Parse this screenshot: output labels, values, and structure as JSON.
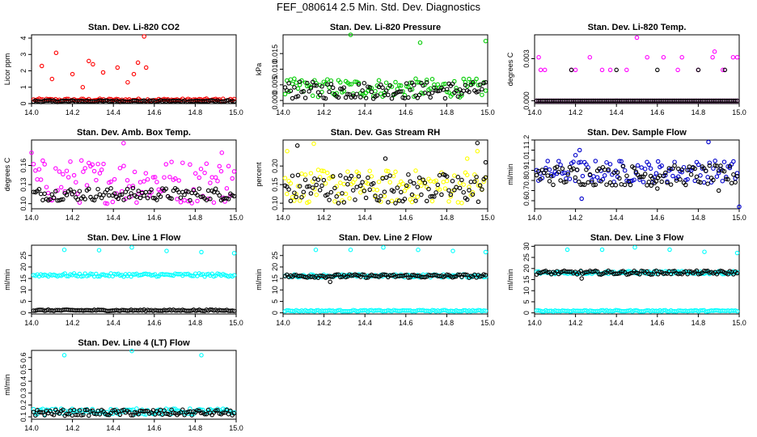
{
  "title": "FEF_080614  2.5 Min. Std. Dev. Diagnostics",
  "chart_data": [
    {
      "type": "scatter",
      "title": "Stan. Dev. Li-820 CO2",
      "ylabel": "Licor ppm",
      "xlim": [
        14.0,
        15.0
      ],
      "ylim": [
        0,
        4.2
      ],
      "xticks": [
        "14.0",
        "14.2",
        "14.4",
        "14.6",
        "14.8",
        "15.0"
      ],
      "yticks": [
        "0",
        "1",
        "2",
        "3",
        "4"
      ],
      "series": [
        {
          "color": "#ff0000",
          "band": [
            0.15,
            0.3
          ],
          "spikes": [
            [
              14.05,
              2.3
            ],
            [
              14.1,
              1.5
            ],
            [
              14.12,
              3.1
            ],
            [
              14.2,
              1.8
            ],
            [
              14.28,
              2.6
            ],
            [
              14.3,
              2.4
            ],
            [
              14.35,
              1.9
            ],
            [
              14.42,
              2.2
            ],
            [
              14.5,
              1.8
            ],
            [
              14.52,
              2.5
            ],
            [
              14.55,
              4.1
            ],
            [
              14.56,
              2.2
            ],
            [
              14.47,
              1.3
            ],
            [
              14.25,
              1.0
            ]
          ]
        },
        {
          "color": "#000000",
          "band": [
            0.1,
            0.2
          ],
          "spikes": []
        }
      ]
    },
    {
      "type": "scatter",
      "title": "Stan. Dev. Li-820 Pressure",
      "ylabel": "kPa",
      "xlim": [
        14.0,
        15.0
      ],
      "ylim": [
        -0.001,
        0.021
      ],
      "xticks": [
        "14.0",
        "14.2",
        "14.4",
        "14.6",
        "14.8",
        "15.0"
      ],
      "yticks": [
        "0.000",
        "0.005",
        "0.010",
        "0.015"
      ],
      "series": [
        {
          "color": "#00cc00",
          "band": [
            0.001,
            0.007
          ],
          "spikes": [
            [
              14.33,
              0.021
            ],
            [
              14.67,
              0.0185
            ],
            [
              14.99,
              0.019
            ]
          ]
        },
        {
          "color": "#000000",
          "band": [
            0.0005,
            0.006
          ],
          "spikes": []
        }
      ]
    },
    {
      "type": "scatter",
      "title": "Stan. Dev. Li-820 Temp.",
      "ylabel": "degrees C",
      "xlim": [
        14.0,
        15.0
      ],
      "ylim": [
        -0.0002,
        0.0047
      ],
      "xticks": [
        "14.0",
        "14.2",
        "14.4",
        "14.6",
        "14.8",
        "15.0"
      ],
      "yticks": [
        "0.000",
        "0.003"
      ],
      "series": [
        {
          "color": "#ff00ff",
          "band": [
            0.0,
            0.0
          ],
          "spikes": [
            [
              14.02,
              0.0031
            ],
            [
              14.03,
              0.0022
            ],
            [
              14.05,
              0.0022
            ],
            [
              14.18,
              0.0022
            ],
            [
              14.2,
              0.0022
            ],
            [
              14.27,
              0.0031
            ],
            [
              14.33,
              0.0022
            ],
            [
              14.37,
              0.0022
            ],
            [
              14.45,
              0.0022
            ],
            [
              14.5,
              0.0045
            ],
            [
              14.55,
              0.0031
            ],
            [
              14.63,
              0.0031
            ],
            [
              14.7,
              0.0022
            ],
            [
              14.72,
              0.0031
            ],
            [
              14.8,
              0.0022
            ],
            [
              14.87,
              0.0031
            ],
            [
              14.88,
              0.0035
            ],
            [
              14.92,
              0.0022
            ],
            [
              14.97,
              0.0031
            ],
            [
              14.99,
              0.0031
            ]
          ]
        },
        {
          "color": "#000000",
          "band": [
            0.0,
            0.0
          ],
          "spikes": [
            [
              14.18,
              0.0022
            ],
            [
              14.4,
              0.0022
            ],
            [
              14.6,
              0.0022
            ],
            [
              14.8,
              0.0022
            ],
            [
              14.93,
              0.0022
            ]
          ]
        }
      ]
    },
    {
      "type": "scatter",
      "title": "Stan. Dev. Amb. Box Temp.",
      "ylabel": "degrees C",
      "xlim": [
        14.0,
        15.0
      ],
      "ylim": [
        0.092,
        0.2
      ],
      "xticks": [
        "14.0",
        "14.2",
        "14.4",
        "14.6",
        "14.8",
        "15.0"
      ],
      "yticks": [
        "0.10",
        "0.13",
        "0.16"
      ],
      "series": [
        {
          "color": "#ff00ff",
          "band": [
            0.1,
            0.17
          ],
          "spikes": [
            [
              14.45,
              0.195
            ],
            [
              14.0,
              0.18
            ],
            [
              14.93,
              0.18
            ]
          ]
        },
        {
          "color": "#000000",
          "band": [
            0.105,
            0.125
          ],
          "spikes": []
        }
      ]
    },
    {
      "type": "scatter",
      "title": "Stan. Dev. Gas Stream RH",
      "ylabel": "percent",
      "xlim": [
        14.0,
        15.0
      ],
      "ylim": [
        0.085,
        0.27
      ],
      "xticks": [
        "14.0",
        "14.2",
        "14.4",
        "14.6",
        "14.8",
        "15.0"
      ],
      "yticks": [
        "0.10",
        "0.15",
        "0.20"
      ],
      "series": [
        {
          "color": "#ffff00",
          "band": [
            0.1,
            0.19
          ],
          "spikes": [
            [
              14.02,
              0.24
            ],
            [
              14.15,
              0.26
            ],
            [
              14.95,
              0.24
            ],
            [
              14.9,
              0.22
            ]
          ]
        },
        {
          "color": "#000000",
          "band": [
            0.1,
            0.18
          ],
          "spikes": [
            [
              14.07,
              0.255
            ],
            [
              14.5,
              0.22
            ],
            [
              14.95,
              0.262
            ],
            [
              14.99,
              0.21
            ]
          ]
        }
      ]
    },
    {
      "type": "scatter",
      "title": "Stan. Dev. Sample Flow",
      "ylabel": "ml/min",
      "xlim": [
        14.0,
        15.0
      ],
      "ylim": [
        0.52,
        1.2
      ],
      "xticks": [
        "14.0",
        "14.2",
        "14.4",
        "14.6",
        "14.8",
        "15.0"
      ],
      "yticks": [
        "0.6",
        "0.7",
        "0.8",
        "0.9",
        "1.0",
        "1.1",
        "1.2"
      ],
      "series": [
        {
          "color": "#0000cc",
          "band": [
            0.78,
            1.0
          ],
          "spikes": [
            [
              14.2,
              1.05
            ],
            [
              14.22,
              1.1
            ],
            [
              14.85,
              1.18
            ],
            [
              15.0,
              0.54
            ],
            [
              14.23,
              0.62
            ]
          ]
        },
        {
          "color": "#000000",
          "band": [
            0.75,
            0.95
          ],
          "spikes": [
            [
              14.57,
              0.75
            ],
            [
              14.6,
              0.72
            ],
            [
              14.9,
              0.7
            ]
          ]
        }
      ]
    },
    {
      "type": "scatter",
      "title": "Stan. Dev. Line 1 Flow",
      "ylabel": "ml/min",
      "xlim": [
        14.0,
        15.0
      ],
      "ylim": [
        -0.5,
        29.5
      ],
      "xticks": [
        "14.0",
        "14.2",
        "14.4",
        "14.6",
        "14.8",
        "15.0"
      ],
      "yticks": [
        "0",
        "5",
        "10",
        "15",
        "20",
        "25"
      ],
      "series": [
        {
          "color": "#00ffff",
          "band": [
            15.8,
            17.2
          ],
          "spikes": [
            [
              14.16,
              27.5
            ],
            [
              14.33,
              27.3
            ],
            [
              14.49,
              28.5
            ],
            [
              14.66,
              27.0
            ],
            [
              14.83,
              26.5
            ],
            [
              14.99,
              26.0
            ]
          ]
        },
        {
          "color": "#000000",
          "band": [
            0.8,
            1.4
          ],
          "spikes": []
        }
      ]
    },
    {
      "type": "scatter",
      "title": "Stan. Dev. Line 2 Flow",
      "ylabel": "ml/min",
      "xlim": [
        14.0,
        15.0
      ],
      "ylim": [
        -0.5,
        29.5
      ],
      "xticks": [
        "14.0",
        "14.2",
        "14.4",
        "14.6",
        "14.8",
        "15.0"
      ],
      "yticks": [
        "0",
        "5",
        "10",
        "15",
        "20",
        "25"
      ],
      "series": [
        {
          "color": "#00ffff",
          "band": [
            0.6,
            1.2
          ],
          "spikes": [
            [
              14.16,
              27.5
            ],
            [
              14.33,
              27.5
            ],
            [
              14.49,
              28.5
            ],
            [
              14.66,
              27.5
            ],
            [
              14.83,
              27.0
            ],
            [
              14.99,
              26.5
            ]
          ]
        },
        {
          "color": "#00ffff",
          "band": [
            15.5,
            16.8
          ],
          "spikes": []
        },
        {
          "color": "#000000",
          "band": [
            15.3,
            16.8
          ],
          "spikes": [
            [
              14.23,
              13.5
            ]
          ]
        }
      ]
    },
    {
      "type": "scatter",
      "title": "Stan. Dev. Line 3 Flow",
      "ylabel": "ml/min",
      "xlim": [
        14.0,
        15.0
      ],
      "ylim": [
        -0.5,
        30.5
      ],
      "xticks": [
        "14.0",
        "14.2",
        "14.4",
        "14.6",
        "14.8",
        "15.0"
      ],
      "yticks": [
        "0",
        "5",
        "10",
        "15",
        "20",
        "25",
        "30"
      ],
      "series": [
        {
          "color": "#00ffff",
          "band": [
            0.6,
            1.2
          ],
          "spikes": [
            [
              14.16,
              28.5
            ],
            [
              14.33,
              28.5
            ],
            [
              14.49,
              29.5
            ],
            [
              14.66,
              28.5
            ],
            [
              14.83,
              27.5
            ],
            [
              14.99,
              27.0
            ]
          ]
        },
        {
          "color": "#00ffff",
          "band": [
            17.5,
            18.8
          ],
          "spikes": []
        },
        {
          "color": "#000000",
          "band": [
            17.3,
            19.0
          ],
          "spikes": [
            [
              14.23,
              15.5
            ]
          ]
        }
      ]
    },
    {
      "type": "scatter",
      "title": "Stan. Dev. Line 4 (LT) Flow",
      "ylabel": "ml/min",
      "xlim": [
        14.0,
        15.0
      ],
      "ylim": [
        0.08,
        0.66
      ],
      "xticks": [
        "14.0",
        "14.2",
        "14.4",
        "14.6",
        "14.8",
        "15.0"
      ],
      "yticks": [
        "0.1",
        "0.2",
        "0.3",
        "0.4",
        "0.5",
        "0.6"
      ],
      "series": [
        {
          "color": "#00ffff",
          "band": [
            0.12,
            0.17
          ],
          "spikes": [
            [
              14.16,
              0.62
            ],
            [
              14.49,
              0.655
            ],
            [
              14.83,
              0.62
            ]
          ]
        },
        {
          "color": "#000000",
          "band": [
            0.11,
            0.16
          ],
          "spikes": []
        }
      ]
    }
  ]
}
